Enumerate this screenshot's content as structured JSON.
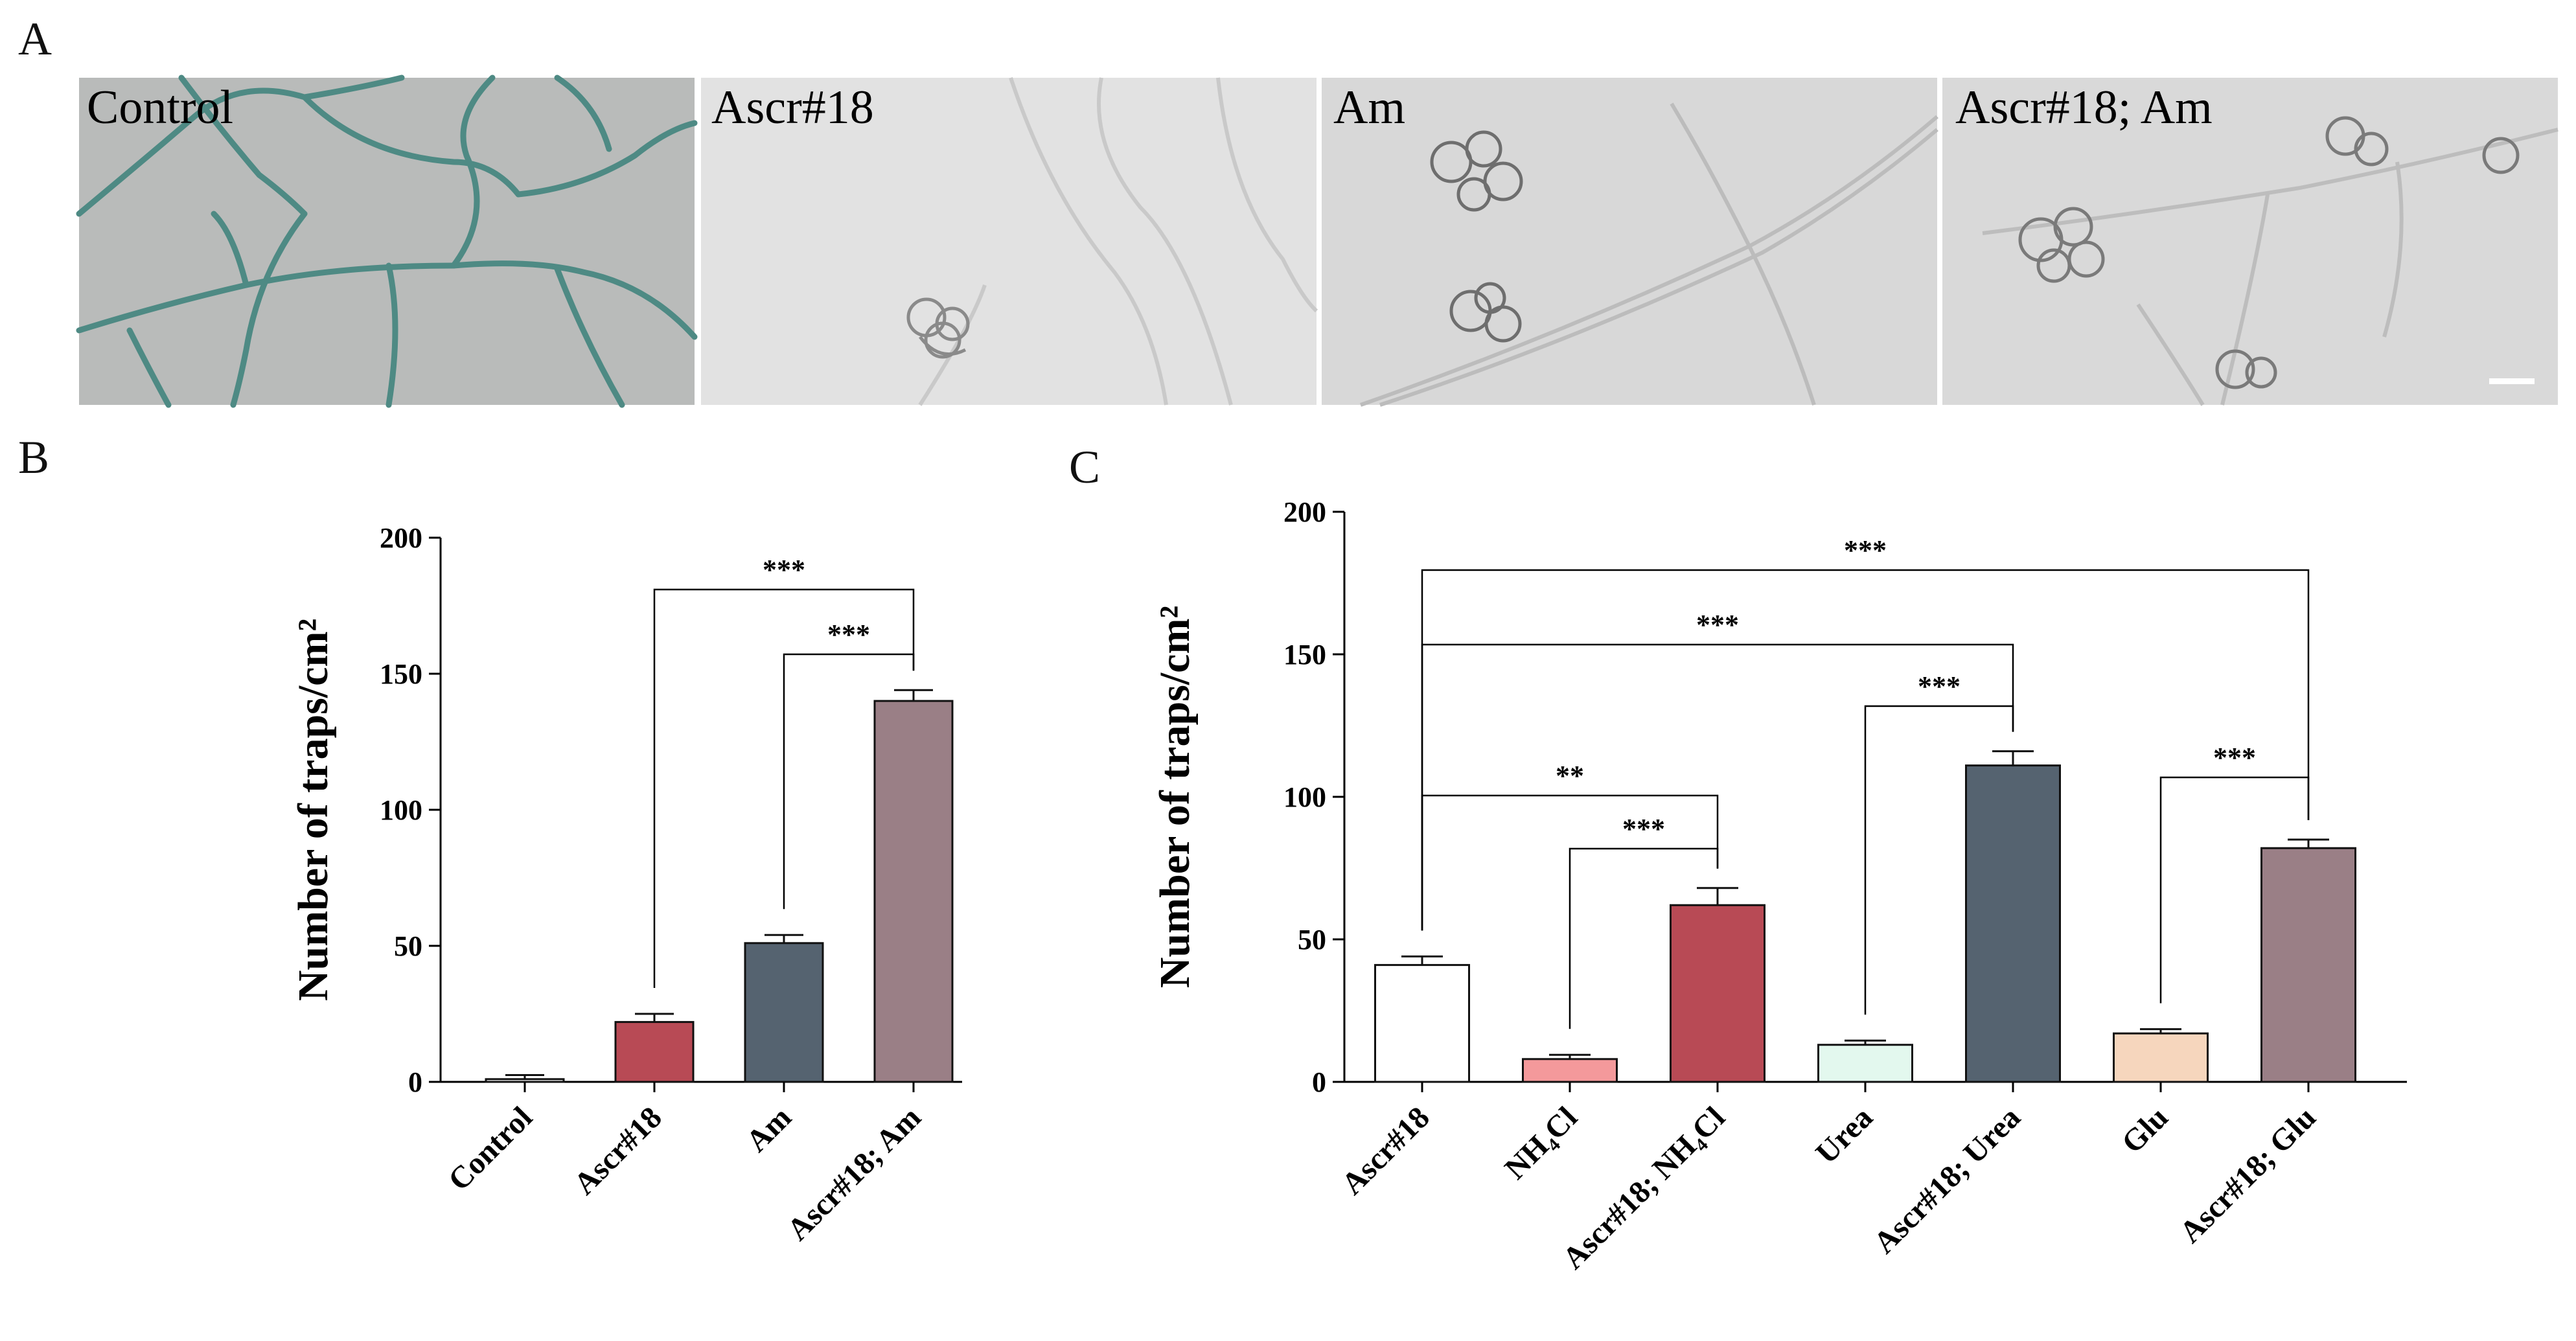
{
  "panels": {
    "a": "A",
    "b": "B",
    "c": "C"
  },
  "images": [
    {
      "label": "Control",
      "bg": "#b9bbba",
      "hypha": "#4e8a84"
    },
    {
      "label": "Ascr#18",
      "bg": "#e2e2e2",
      "hypha": "#c9c9c9"
    },
    {
      "label": "Am",
      "bg": "#d8d8d8",
      "hypha": "#bcbcbc"
    },
    {
      "label": "Ascr#18; Am",
      "bg": "#d9d9d9",
      "hypha": "#bdbdbd"
    }
  ],
  "chart_data": [
    {
      "type": "bar",
      "ylabel": "Number of traps/cm²",
      "ylim": [
        0,
        200
      ],
      "yticks": [
        0,
        50,
        100,
        150,
        200
      ],
      "categories": [
        "Control",
        "Ascr#18",
        "Am",
        "Ascr#18; Am"
      ],
      "values": [
        1,
        22,
        51,
        140
      ],
      "errors": [
        1.5,
        3,
        3,
        4
      ],
      "colors": [
        "#ffffff",
        "#b84a55",
        "#556370",
        "#9a7f86"
      ],
      "significance": [
        {
          "from": 1,
          "to": 3,
          "label": "***"
        },
        {
          "from": 2,
          "to": 3,
          "label": "***"
        }
      ]
    },
    {
      "type": "bar",
      "ylabel": "Number of traps/cm²",
      "ylim": [
        0,
        200
      ],
      "yticks": [
        0,
        50,
        100,
        150,
        200
      ],
      "categories": [
        "Ascr#18",
        "NH₄Cl",
        "Ascr#18; NH₄Cl",
        "Urea",
        "Ascr#18; Urea",
        "Glu",
        "Ascr#18; Glu"
      ],
      "values": [
        41,
        8,
        62,
        13,
        111,
        17,
        82
      ],
      "errors": [
        3,
        1.5,
        6,
        1.5,
        5,
        1.5,
        3
      ],
      "colors": [
        "#ffffff",
        "#f4999b",
        "#b84a55",
        "#e3f8ee",
        "#556370",
        "#f6d6bd",
        "#9a7f86"
      ],
      "significance": [
        {
          "from": 0,
          "to": 6,
          "label": "***"
        },
        {
          "from": 0,
          "to": 4,
          "label": "***"
        },
        {
          "from": 3,
          "to": 4,
          "label": "***"
        },
        {
          "from": 0,
          "to": 2,
          "label": "**"
        },
        {
          "from": 1,
          "to": 2,
          "label": "***"
        },
        {
          "from": 5,
          "to": 6,
          "label": "***"
        }
      ]
    }
  ]
}
